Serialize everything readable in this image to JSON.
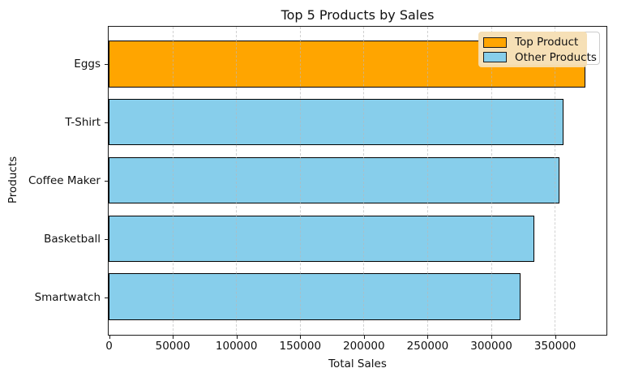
{
  "chart_data": {
    "type": "bar",
    "orientation": "horizontal",
    "title": "Top 5 Products by Sales",
    "xlabel": "Total Sales",
    "ylabel": "Products",
    "categories": [
      "Eggs",
      "T-Shirt",
      "Coffee Maker",
      "Basketball",
      "Smartwatch"
    ],
    "values": [
      374000,
      357000,
      354000,
      334000,
      323000
    ],
    "bar_colors": [
      "#FFA500",
      "#87CEEB",
      "#87CEEB",
      "#87CEEB",
      "#87CEEB"
    ],
    "bar_edge_color": "#000000",
    "xlim": [
      0,
      390000
    ],
    "xticks": [
      0,
      50000,
      100000,
      150000,
      200000,
      250000,
      300000,
      350000
    ],
    "xtick_labels": [
      "0",
      "50000",
      "100000",
      "150000",
      "200000",
      "250000",
      "300000",
      "350000"
    ],
    "grid": {
      "axis": "x",
      "style": "dashed",
      "color": "#BBBBBB"
    },
    "legend": {
      "position": "upper-right",
      "facecolor": "#F5DEB3",
      "entries": [
        {
          "label": "Top Product",
          "color": "#FFA500"
        },
        {
          "label": "Other Products",
          "color": "#87CEEB"
        }
      ]
    }
  }
}
